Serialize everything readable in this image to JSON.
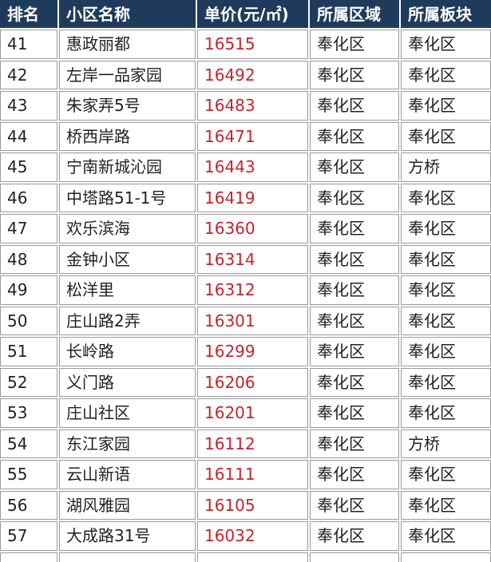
{
  "header": [
    "排名",
    "小区名称",
    "单价(元/㎡)",
    "所属区域",
    "所属板块"
  ],
  "table": {
    "rows": [
      [
        41,
        "惠政丽都",
        16515,
        "奉化区",
        "奉化区"
      ],
      [
        42,
        "左岸一品家园",
        16492,
        "奉化区",
        "奉化区"
      ],
      [
        43,
        "朱家弄5号",
        16483,
        "奉化区",
        "奉化区"
      ],
      [
        44,
        "桥西岸路",
        16471,
        "奉化区",
        "奉化区"
      ],
      [
        45,
        "宁南新城沁园",
        16443,
        "奉化区",
        "方桥"
      ],
      [
        46,
        "中塔路51-1号",
        16419,
        "奉化区",
        "奉化区"
      ],
      [
        47,
        "欢乐滨海",
        16360,
        "奉化区",
        "奉化区"
      ],
      [
        48,
        "金钟小区",
        16314,
        "奉化区",
        "奉化区"
      ],
      [
        49,
        "松洋里",
        16312,
        "奉化区",
        "奉化区"
      ],
      [
        50,
        "庄山路2弄",
        16301,
        "奉化区",
        "奉化区"
      ],
      [
        51,
        "长岭路",
        16299,
        "奉化区",
        "奉化区"
      ],
      [
        52,
        "义门路",
        16206,
        "奉化区",
        "奉化区"
      ],
      [
        53,
        "庄山社区",
        16201,
        "奉化区",
        "奉化区"
      ],
      [
        54,
        "东江家园",
        16112,
        "奉化区",
        "方桥"
      ],
      [
        55,
        "云山新语",
        16111,
        "奉化区",
        "奉化区"
      ],
      [
        56,
        "湖风雅园",
        16105,
        "奉化区",
        "奉化区"
      ],
      [
        57,
        "大成路31号",
        16032,
        "奉化区",
        "奉化区"
      ]
    ]
  }
}
